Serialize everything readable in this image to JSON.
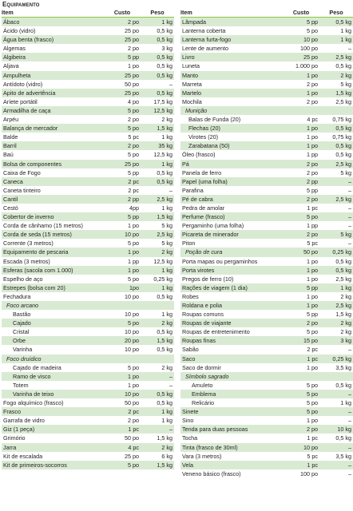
{
  "title": "Equipamento",
  "headers": {
    "item": "Item",
    "custo": "Custo",
    "peso": "Peso"
  },
  "colors": {
    "band": "#d9ead3",
    "rule": "#8cc63f"
  },
  "left": [
    {
      "n": "Ábaco",
      "c": "2 po",
      "p": "1 kg"
    },
    {
      "n": "Ácido (vidro)",
      "c": "25 po",
      "p": "0,5 kg"
    },
    {
      "n": "Água benta (frasco)",
      "c": "25 po",
      "p": "0,5 kg"
    },
    {
      "n": "Algemas",
      "c": "2 po",
      "p": "3 kg"
    },
    {
      "n": "Algibeira",
      "c": "5 pp",
      "p": "0,5 kg"
    },
    {
      "n": "Aljava",
      "c": "1 po",
      "p": "0,5 kg"
    },
    {
      "n": "Ampulheta",
      "c": "25 po",
      "p": "0,5 kg"
    },
    {
      "n": "Antídoto (vidro)",
      "c": "50 po",
      "p": "–"
    },
    {
      "n": "Apito de advertência",
      "c": "25 po",
      "p": "0,5 kg"
    },
    {
      "n": "Aríete portátil",
      "c": "4 po",
      "p": "17,5 kg"
    },
    {
      "n": "Armadilha de caça",
      "c": "5 po",
      "p": "12,5 kg"
    },
    {
      "n": "Arpéu",
      "c": "2 po",
      "p": "2 kg"
    },
    {
      "n": "Balança de mercador",
      "c": "5 po",
      "p": "1,5 kg"
    },
    {
      "n": "Balde",
      "c": "5 pc",
      "p": "1 kg"
    },
    {
      "n": "Barril",
      "c": "2 po",
      "p": "35 kg"
    },
    {
      "n": "Baú",
      "c": "5 po",
      "p": "12,5 kg"
    },
    {
      "n": "Bolsa de componentes",
      "c": "25 po",
      "p": "1 kg"
    },
    {
      "n": "Caixa de Fogo",
      "c": "5 pp",
      "p": "0,5 kg"
    },
    {
      "n": "Caneca",
      "c": "2 pc",
      "p": "0,5 kg"
    },
    {
      "n": "Caneta tinteiro",
      "c": "2 pc",
      "p": "–"
    },
    {
      "n": "Cantil",
      "c": "2 pp",
      "p": "2,5 kg"
    },
    {
      "n": "Cestó",
      "c": "4pp",
      "p": "1 kg"
    },
    {
      "n": "Cobertor de inverno",
      "c": "5 pp",
      "p": "1,5 kg"
    },
    {
      "n": "Corda de cânhamo (15 metros)",
      "c": "1 po",
      "p": "5 kg"
    },
    {
      "n": "Corda de seda (15 metros)",
      "c": "10 po",
      "p": "2,5 kg"
    },
    {
      "n": "Corrente (3 metros)",
      "c": "5 po",
      "p": "5 kg"
    },
    {
      "n": "Equipamento de pescaria",
      "c": "1 po",
      "p": "2 kg"
    },
    {
      "n": "Escada (3 metros)",
      "c": "1 pp",
      "p": "12,5 kg"
    },
    {
      "n": "Esferas (sacola com 1.000)",
      "c": "1 po",
      "p": "1 kg"
    },
    {
      "n": "Espelho de aço",
      "c": "5 po",
      "p": "0,25 kg"
    },
    {
      "n": "Estrepes (bolsa com 20)",
      "c": "1po",
      "p": "1 kg"
    },
    {
      "n": "Fechadura",
      "c": "10 po",
      "p": "0,5 kg"
    },
    {
      "n": "Foco arcano",
      "c": "",
      "p": "",
      "t": "cat"
    },
    {
      "n": "Bastão",
      "c": "10 po",
      "p": "1 kg",
      "t": "in1"
    },
    {
      "n": "Cajado",
      "c": "5 po",
      "p": "2 kg",
      "t": "in1"
    },
    {
      "n": "Cristal",
      "c": "10 po",
      "p": "0,5 kg",
      "t": "in1"
    },
    {
      "n": "Orbe",
      "c": "20 po",
      "p": "1,5 kg",
      "t": "in1"
    },
    {
      "n": "Varinha",
      "c": "10 po",
      "p": "0,5 kg",
      "t": "in1"
    },
    {
      "n": "Foco druídico",
      "c": "",
      "p": "",
      "t": "cat"
    },
    {
      "n": "Cajado de madeira",
      "c": "5 po",
      "p": "2 kg",
      "t": "in1"
    },
    {
      "n": "Ramo de visco",
      "c": "1 po",
      "p": "–",
      "t": "in1"
    },
    {
      "n": "Totem",
      "c": "1 po",
      "p": "–",
      "t": "in1"
    },
    {
      "n": "Varinha de teixo",
      "c": "10 po",
      "p": "0,5 kg",
      "t": "in1"
    },
    {
      "n": "Fogo alquímico (frasco)",
      "c": "50 po",
      "p": "0,5 kg"
    },
    {
      "n": "Frasco",
      "c": "2 pc",
      "p": "1 kg"
    },
    {
      "n": "Garrafa de vidro",
      "c": "2 po",
      "p": "1 kg"
    },
    {
      "n": "Giz (1 peça)",
      "c": "1 pc",
      "p": "–"
    },
    {
      "n": "Grimório",
      "c": "50 po",
      "p": "1,5 kg"
    },
    {
      "n": "Jarra",
      "c": "4 pc",
      "p": "2 kg"
    },
    {
      "n": "Kit de escalada",
      "c": "25 po",
      "p": "6 kg"
    },
    {
      "n": "Kit de primeiros-socorros",
      "c": "5 po",
      "p": "1,5 kg"
    }
  ],
  "right": [
    {
      "n": "Lâmpada",
      "c": "5 pp",
      "p": "0,5 kg"
    },
    {
      "n": "Lanterna coberta",
      "c": "5 po",
      "p": "1 kg"
    },
    {
      "n": "Lanterna furta-fogo",
      "c": "10 po",
      "p": "1 kg"
    },
    {
      "n": "Lente de aumento",
      "c": "100 po",
      "p": "–"
    },
    {
      "n": "Livro",
      "c": "25 po",
      "p": "2,5 kg"
    },
    {
      "n": "Luneta",
      "c": "1.000 po",
      "p": "0,5 kg"
    },
    {
      "n": "Manto",
      "c": "1 po",
      "p": "2 kg"
    },
    {
      "n": "Marreta",
      "c": "2 po",
      "p": "5 kg"
    },
    {
      "n": "Martelo",
      "c": "1 po",
      "p": "1,5 kg"
    },
    {
      "n": "Mochila",
      "c": "2 po",
      "p": "2,5 kg"
    },
    {
      "n": "Munição",
      "c": "",
      "p": "",
      "t": "cat"
    },
    {
      "n": "Balas de Funda (20)",
      "c": "4 pc",
      "p": "0,75 kg",
      "t": "in2"
    },
    {
      "n": "Flechas (20)",
      "c": "1 po",
      "p": "0,5 kg",
      "t": "in2"
    },
    {
      "n": "Virotes (20)",
      "c": "1 po",
      "p": "0,75 kg",
      "t": "in2"
    },
    {
      "n": "Zarabatana (50)",
      "c": "1 po",
      "p": "0,5 kg",
      "t": "in2"
    },
    {
      "n": "Óleo (frasco)",
      "c": "1 pp",
      "p": "0,5 kg"
    },
    {
      "n": "Pá",
      "c": "2 po",
      "p": "2,5 kg"
    },
    {
      "n": "Panela de ferro",
      "c": "2 po",
      "p": "5 kg"
    },
    {
      "n": "Papel (uma folha)",
      "c": "2 pp",
      "p": "–"
    },
    {
      "n": "Parafina",
      "c": "5 pp",
      "p": "–"
    },
    {
      "n": "Pé de cabra",
      "c": "2 po",
      "p": "2,5 kg"
    },
    {
      "n": "Pedra de amolar",
      "c": "1 pc",
      "p": "–"
    },
    {
      "n": "Perfume (frasco)",
      "c": "5 po",
      "p": "–"
    },
    {
      "n": "Pergaminho (uma folha)",
      "c": "1 pp",
      "p": "–"
    },
    {
      "n": "Picareta de minerador",
      "c": "2 po",
      "p": "5 kg"
    },
    {
      "n": "Piton",
      "c": "5 pc",
      "p": "–"
    },
    {
      "n": "Poção de cura",
      "c": "50 po",
      "p": "0,25 kg",
      "t": "cat"
    },
    {
      "n": "Porta mapas ou pergaminhos",
      "c": "1 po",
      "p": "0,5 kg"
    },
    {
      "n": "Porta virotes",
      "c": "1 po",
      "p": "0,5 kg"
    },
    {
      "n": "Pregos de ferro (10)",
      "c": "1 po",
      "p": "2,5 kg"
    },
    {
      "n": "Rações de viagem (1 dia)",
      "c": "5 pp",
      "p": "1 kg"
    },
    {
      "n": "Robes",
      "c": "1 po",
      "p": "2 kg"
    },
    {
      "n": "Roldana e polia",
      "c": "1 po",
      "p": "2,5 kg"
    },
    {
      "n": "Roupas comuns",
      "c": "5 pp",
      "p": "1,5 kg"
    },
    {
      "n": "Roupas de viajante",
      "c": "2 po",
      "p": "2 kg"
    },
    {
      "n": "Roupas de entretenimento",
      "c": "5 po",
      "p": "2 kg"
    },
    {
      "n": "Roupas finas",
      "c": "15 po",
      "p": "3 kg"
    },
    {
      "n": "Sabão",
      "c": "2 pc",
      "p": "–"
    },
    {
      "n": "Saco",
      "c": "1 pc",
      "p": "0,25 kg"
    },
    {
      "n": "Saco de dormir",
      "c": "1 po",
      "p": "3,5 kg"
    },
    {
      "n": "Símbolo sagrado",
      "c": "",
      "p": "",
      "t": "cat"
    },
    {
      "n": "Amuleto",
      "c": "5 po",
      "p": "0,5 kg",
      "t": "in1"
    },
    {
      "n": "Emblema",
      "c": "5 po",
      "p": "–",
      "t": "in1"
    },
    {
      "n": "Relicário",
      "c": "5 po",
      "p": "1 kg",
      "t": "in1"
    },
    {
      "n": "Sinete",
      "c": "5 po",
      "p": "–"
    },
    {
      "n": "Sino",
      "c": "1 po",
      "p": "–"
    },
    {
      "n": "Tenda para duas pessoas",
      "c": "2 po",
      "p": "10 kg"
    },
    {
      "n": "Tocha",
      "c": "1 pc",
      "p": "0,5 kg"
    },
    {
      "n": "Tinta (frasco de 30ml)",
      "c": "10 po",
      "p": "–"
    },
    {
      "n": "Vara (3 metros)",
      "c": "5 pc",
      "p": "3,5 kg"
    },
    {
      "n": "Vela",
      "c": "1 pc",
      "p": "–"
    },
    {
      "n": "Veneno básico (frasco)",
      "c": "100 po",
      "p": "–"
    }
  ]
}
